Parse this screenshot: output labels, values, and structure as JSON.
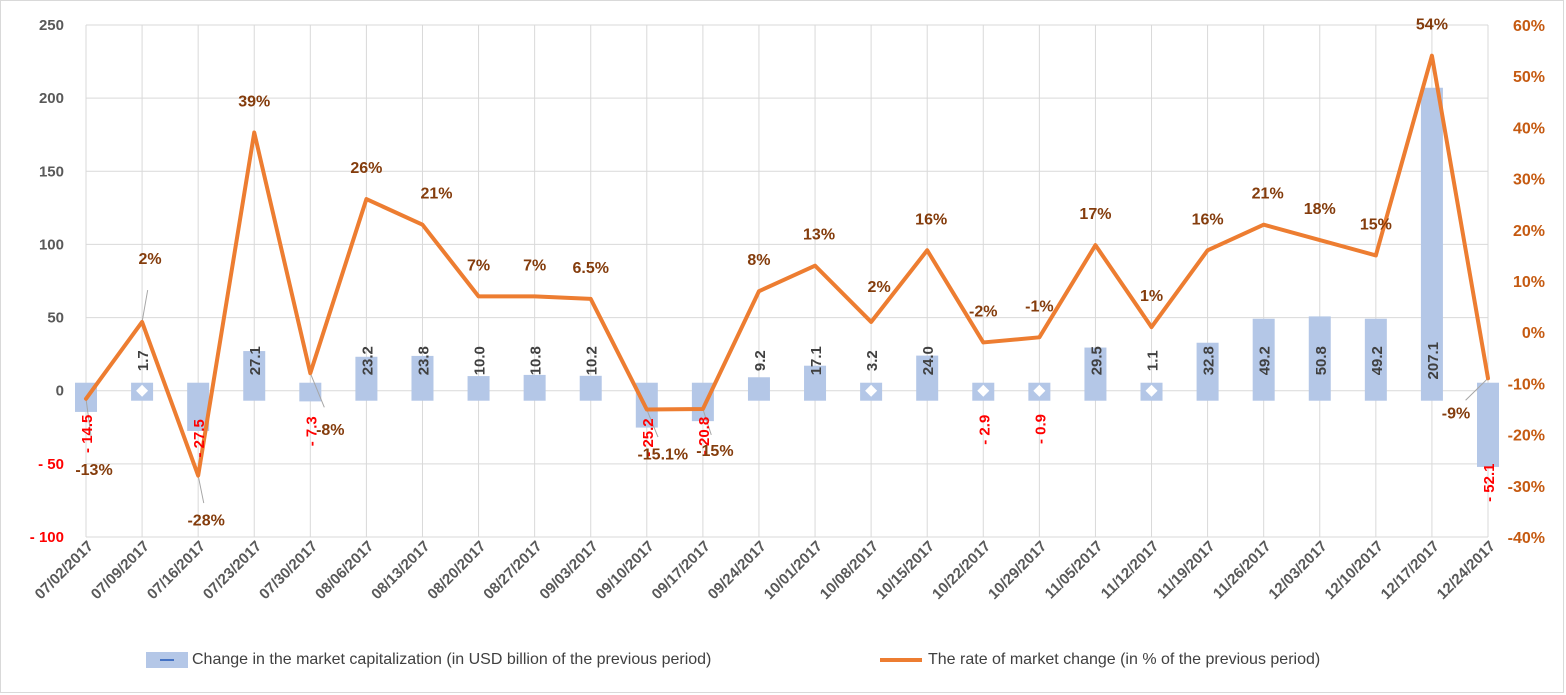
{
  "chart_data": {
    "type": "bar",
    "combo": "bar + line (secondary axis)",
    "categories": [
      "07/02/2017",
      "07/09/2017",
      "07/16/2017",
      "07/23/2017",
      "07/30/2017",
      "08/06/2017",
      "08/13/2017",
      "08/20/2017",
      "08/27/2017",
      "09/03/2017",
      "09/10/2017",
      "09/17/2017",
      "09/24/2017",
      "10/01/2017",
      "10/08/2017",
      "10/15/2017",
      "10/22/2017",
      "10/29/2017",
      "11/05/2017",
      "11/12/2017",
      "11/19/2017",
      "11/26/2017",
      "12/03/2017",
      "12/10/2017",
      "12/17/2017",
      "12/24/2017"
    ],
    "series": [
      {
        "name": "Change in the market capitalization  (in USD billion of the previous period)",
        "kind": "bar",
        "axis": "left",
        "color": "#b4c7e7",
        "values": [
          -14.5,
          1.7,
          -27.5,
          27.1,
          -7.3,
          23.2,
          23.8,
          10.0,
          10.8,
          10.2,
          -25.2,
          -20.8,
          9.2,
          17.1,
          3.2,
          24.0,
          -2.9,
          -0.9,
          29.5,
          1.1,
          32.8,
          49.2,
          50.8,
          49.2,
          207.1,
          -52.1
        ],
        "labels": [
          "- 14.5",
          "1.7",
          "- 27.5",
          "27.1",
          "- 7.3",
          "23.2",
          "23.8",
          "10.0",
          "10.8",
          "10.2",
          "- 25.2",
          "- 20.8",
          "9.2",
          "17.1",
          "3.2",
          "24.0",
          "- 2.9",
          "- 0.9",
          "29.5",
          "1.1",
          "32.8",
          "49.2",
          "50.8",
          "49.2",
          "207.1",
          "- 52.1"
        ]
      },
      {
        "name": "The rate of market change (in % of the previous period)",
        "kind": "line",
        "axis": "right",
        "color": "#ed7d31",
        "values": [
          -13,
          2,
          -28,
          39,
          -8,
          26,
          21,
          7,
          7,
          6.5,
          -15.1,
          -15,
          8,
          13,
          2,
          16,
          -2,
          -1,
          17,
          1,
          16,
          21,
          18,
          15,
          54,
          -9
        ],
        "labels": [
          "-13%",
          "2%",
          "-28%",
          "39%",
          "-8%",
          "26%",
          "21%",
          "7%",
          "7%",
          "6.5%",
          "-15.1%",
          "-15%",
          "8%",
          "13%",
          "2%",
          "16%",
          "-2%",
          "-1%",
          "17%",
          "1%",
          "16%",
          "21%",
          "18%",
          "15%",
          "54%",
          "-9%"
        ]
      }
    ],
    "y_left": {
      "min": -100,
      "max": 250,
      "step": 50,
      "ticks": [
        "- 100",
        "- 50",
        "0",
        "50",
        "100",
        "150",
        "200",
        "250"
      ]
    },
    "y_right": {
      "min": -40,
      "max": 60,
      "step": 10,
      "ticks": [
        "-40%",
        "-30%",
        "-20%",
        "-10%",
        "0%",
        "10%",
        "20%",
        "30%",
        "40%",
        "50%",
        "60%"
      ]
    },
    "grid": "vertical and horizontal",
    "legend_position": "bottom",
    "colors": {
      "bar": "#b4c7e7",
      "bar_marker": "#4472c4",
      "line": "#ed7d31",
      "line_label": "#843c0c",
      "negative_label": "#ff0000",
      "bar_label": "#404040",
      "right_axis_text": "#c55a11",
      "axis_text": "#595959",
      "grid": "#d9d9d9"
    }
  },
  "legend": {
    "bar_label": "Change in the market capitalization  (in USD billion of the previous period)",
    "line_label": "The rate of market change (in % of the previous period)"
  }
}
